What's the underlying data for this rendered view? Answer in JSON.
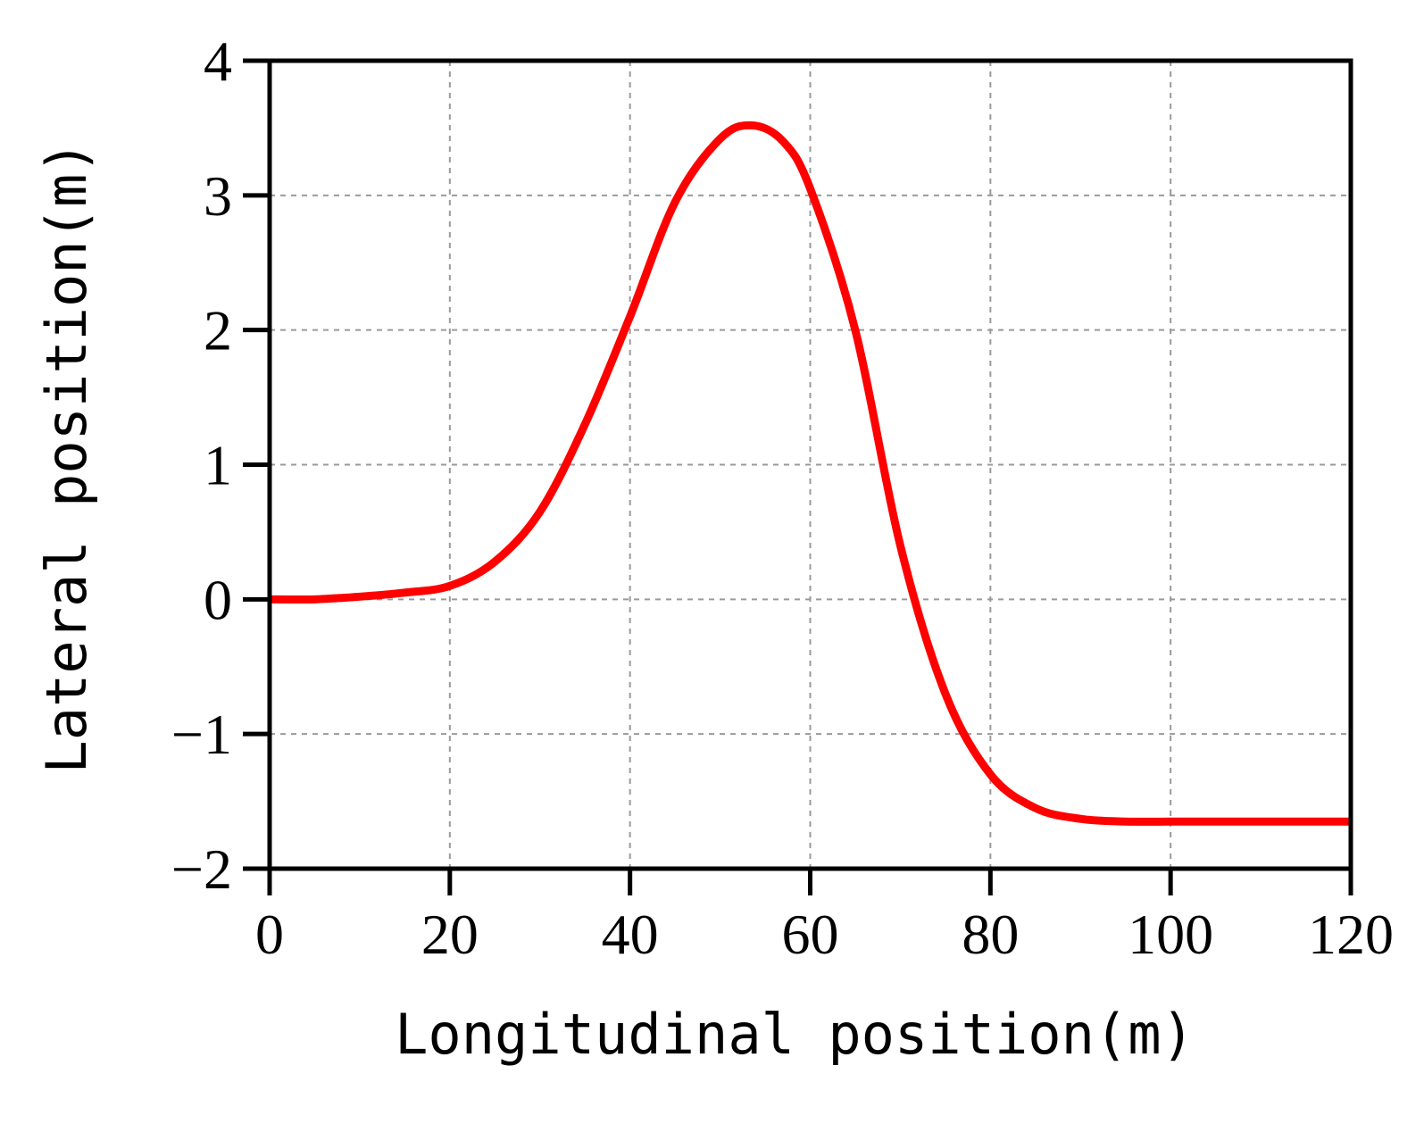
{
  "chart_data": {
    "type": "line",
    "title": "",
    "xlabel": "Longitudinal position(m)",
    "ylabel": "Lateral position(m)",
    "xlim": [
      0,
      120
    ],
    "ylim": [
      -2,
      4
    ],
    "xticks": [
      0,
      20,
      40,
      60,
      80,
      100,
      120
    ],
    "yticks": [
      -2,
      -1,
      0,
      1,
      2,
      3,
      4
    ],
    "xtick_labels": [
      "0",
      "20",
      "40",
      "60",
      "80",
      "100",
      "120"
    ],
    "ytick_labels": [
      "−2",
      "−1",
      "0",
      "1",
      "2",
      "3",
      "4"
    ],
    "grid": true,
    "series": [
      {
        "color": "#ff0000",
        "x": [
          0,
          5,
          10,
          15,
          20,
          25,
          30,
          35,
          40,
          45,
          50,
          53.5,
          57,
          60,
          65,
          70,
          75,
          80,
          85,
          90,
          95,
          100,
          105,
          110,
          115,
          120
        ],
        "y": [
          0,
          0.0,
          0.02,
          0.05,
          0.1,
          0.28,
          0.65,
          1.3,
          2.1,
          2.95,
          3.42,
          3.52,
          3.4,
          3.05,
          2.0,
          0.4,
          -0.7,
          -1.3,
          -1.55,
          -1.63,
          -1.65,
          -1.65,
          -1.65,
          -1.65,
          -1.65,
          -1.65
        ]
      }
    ]
  }
}
